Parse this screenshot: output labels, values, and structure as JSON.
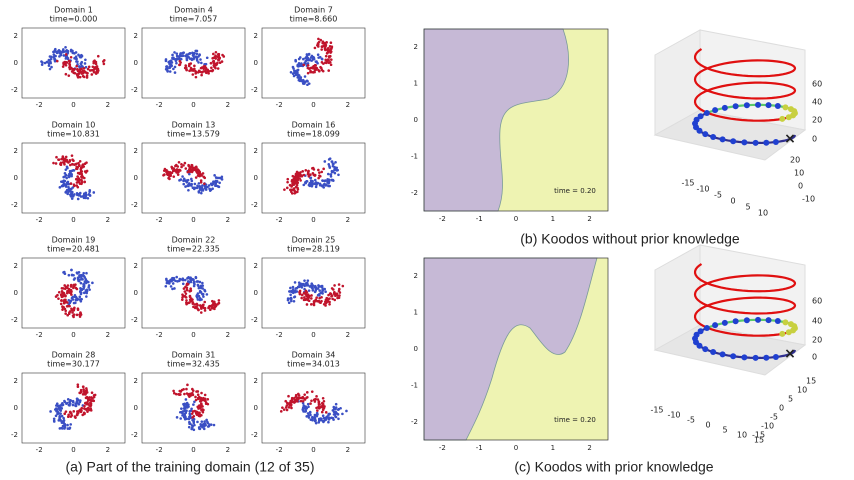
{
  "panel_a": {
    "caption": "(a) Part of the training domain (12 of 35)",
    "xticks": [
      -2,
      0,
      2
    ],
    "yticks": [
      2,
      0,
      -2
    ],
    "domains": [
      {
        "title": "Domain 1",
        "time": "time=0.000"
      },
      {
        "title": "Domain 4",
        "time": "time=7.057"
      },
      {
        "title": "Domain 7",
        "time": "time=8.660"
      },
      {
        "title": "Domain 10",
        "time": "time=10.831"
      },
      {
        "title": "Domain 13",
        "time": "time=13.579"
      },
      {
        "title": "Domain 16",
        "time": "time=18.099"
      },
      {
        "title": "Domain 19",
        "time": "time=20.481"
      },
      {
        "title": "Domain 22",
        "time": "time=22.335"
      },
      {
        "title": "Domain 25",
        "time": "time=28.119"
      },
      {
        "title": "Domain 28",
        "time": "time=30.177"
      },
      {
        "title": "Domain 31",
        "time": "time=32.435"
      },
      {
        "title": "Domain 34",
        "time": "time=34.013"
      }
    ]
  },
  "panel_b": {
    "caption": "(b) Koodos without prior knowledge",
    "annotation": "time = 0.20",
    "xticks": [
      -2,
      -1,
      0,
      1,
      2
    ],
    "yticks": [
      2,
      1,
      0,
      -1,
      -2
    ],
    "zticks3d": [
      60,
      40,
      20,
      0
    ],
    "xticks3d": [
      -15,
      -10,
      -5,
      0,
      5,
      10
    ],
    "yticks3d": [
      20,
      10,
      0,
      -10
    ]
  },
  "panel_c": {
    "caption": "(c) Koodos with prior knowledge",
    "annotation": "time = 0.20",
    "xticks": [
      -2,
      -1,
      0,
      1,
      2
    ],
    "yticks": [
      2,
      1,
      0,
      -1,
      -2
    ],
    "zticks3d": [
      60,
      40,
      20,
      0
    ],
    "xticks3d": [
      -15,
      -10,
      -5,
      0,
      5,
      10,
      15
    ],
    "yticks3d": [
      15,
      10,
      5,
      0,
      -5,
      -10,
      -15
    ]
  }
}
